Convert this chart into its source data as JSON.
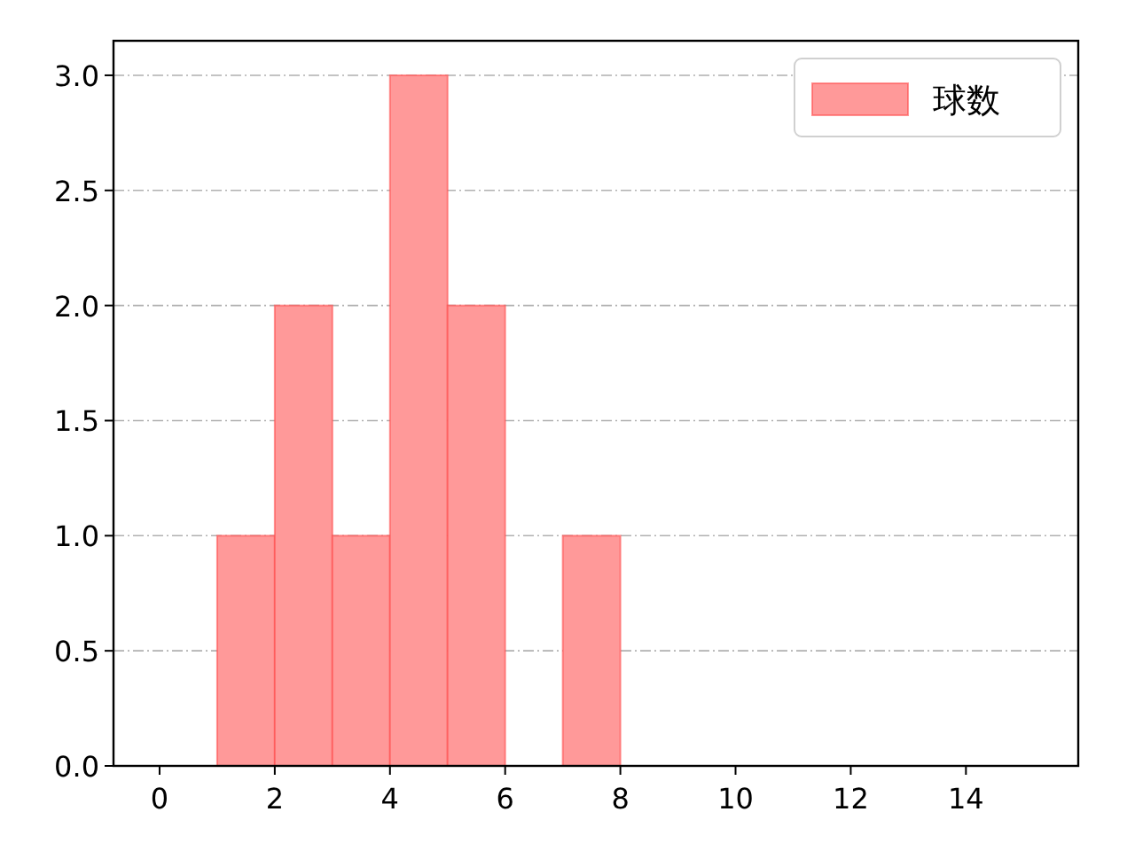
{
  "chart_data": {
    "type": "histogram",
    "bins": [
      1,
      2,
      3,
      4,
      5,
      6,
      7,
      8
    ],
    "series": [
      {
        "name": "球数",
        "color": "#ff9999",
        "values": [
          1,
          2,
          1,
          3,
          2,
          0,
          1
        ]
      }
    ],
    "xlim": [
      -0.8,
      15.95
    ],
    "ylim": [
      0,
      3.15
    ],
    "xticks": [
      0,
      2,
      4,
      6,
      8,
      10,
      12,
      14
    ],
    "yticks": [
      {
        "value": 0,
        "label": "0.0"
      },
      {
        "value": 0.5,
        "label": "0.5"
      },
      {
        "value": 1,
        "label": "1.0"
      },
      {
        "value": 1.5,
        "label": "1.5"
      },
      {
        "value": 2,
        "label": "2.0"
      },
      {
        "value": 2.5,
        "label": "2.5"
      },
      {
        "value": 3,
        "label": "3.0"
      }
    ],
    "grid": "y",
    "legend": "top right"
  }
}
